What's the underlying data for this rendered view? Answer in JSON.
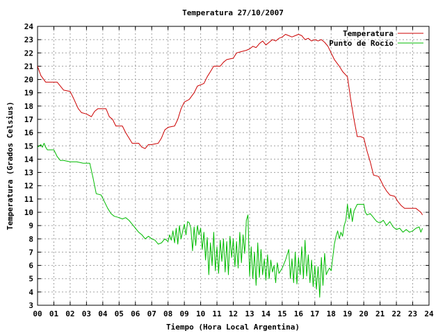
{
  "chart_data": {
    "type": "line",
    "title": "Temperatura 27/10/2007",
    "xlabel": "Tiempo (Hora Local Argentina)",
    "ylabel": "Temperatura (Grados Celsius)",
    "xlim": [
      0,
      24
    ],
    "ylim": [
      3,
      24
    ],
    "x_ticks": [
      "00",
      "01",
      "02",
      "03",
      "04",
      "05",
      "06",
      "07",
      "08",
      "09",
      "10",
      "11",
      "12",
      "13",
      "14",
      "15",
      "16",
      "17",
      "18",
      "19",
      "20",
      "21",
      "22",
      "23",
      "24"
    ],
    "y_ticks": [
      3,
      4,
      5,
      6,
      7,
      8,
      9,
      10,
      11,
      12,
      13,
      14,
      15,
      16,
      17,
      18,
      19,
      20,
      21,
      22,
      23,
      24
    ],
    "grid": true,
    "legend_position": "top-right",
    "series": [
      {
        "name": "Temperatura",
        "color": "#cc0000",
        "points": [
          [
            0.0,
            21.0
          ],
          [
            0.2,
            20.3
          ],
          [
            0.5,
            19.8
          ],
          [
            0.8,
            19.8
          ],
          [
            1.2,
            19.8
          ],
          [
            1.4,
            19.5
          ],
          [
            1.6,
            19.2
          ],
          [
            2.0,
            19.1
          ],
          [
            2.2,
            18.6
          ],
          [
            2.5,
            17.8
          ],
          [
            2.7,
            17.5
          ],
          [
            3.0,
            17.4
          ],
          [
            3.3,
            17.2
          ],
          [
            3.5,
            17.6
          ],
          [
            3.7,
            17.8
          ],
          [
            4.2,
            17.8
          ],
          [
            4.4,
            17.2
          ],
          [
            4.6,
            17.0
          ],
          [
            4.8,
            16.5
          ],
          [
            5.2,
            16.5
          ],
          [
            5.4,
            16.0
          ],
          [
            5.6,
            15.6
          ],
          [
            5.8,
            15.2
          ],
          [
            6.2,
            15.2
          ],
          [
            6.4,
            14.9
          ],
          [
            6.6,
            14.8
          ],
          [
            6.8,
            15.1
          ],
          [
            7.0,
            15.1
          ],
          [
            7.4,
            15.2
          ],
          [
            7.6,
            15.6
          ],
          [
            7.8,
            16.2
          ],
          [
            8.0,
            16.4
          ],
          [
            8.4,
            16.5
          ],
          [
            8.6,
            17.0
          ],
          [
            8.8,
            17.8
          ],
          [
            9.0,
            18.3
          ],
          [
            9.3,
            18.5
          ],
          [
            9.6,
            19.0
          ],
          [
            9.8,
            19.5
          ],
          [
            10.2,
            19.7
          ],
          [
            10.4,
            20.2
          ],
          [
            10.6,
            20.6
          ],
          [
            10.8,
            21.0
          ],
          [
            11.2,
            21.0
          ],
          [
            11.4,
            21.3
          ],
          [
            11.6,
            21.5
          ],
          [
            12.0,
            21.6
          ],
          [
            12.2,
            22.0
          ],
          [
            12.5,
            22.1
          ],
          [
            12.8,
            22.2
          ],
          [
            13.0,
            22.3
          ],
          [
            13.2,
            22.5
          ],
          [
            13.4,
            22.4
          ],
          [
            13.6,
            22.7
          ],
          [
            13.8,
            22.9
          ],
          [
            14.0,
            22.6
          ],
          [
            14.2,
            22.8
          ],
          [
            14.4,
            23.0
          ],
          [
            14.6,
            22.9
          ],
          [
            14.8,
            23.1
          ],
          [
            15.0,
            23.2
          ],
          [
            15.2,
            23.4
          ],
          [
            15.4,
            23.3
          ],
          [
            15.6,
            23.2
          ],
          [
            15.8,
            23.3
          ],
          [
            16.0,
            23.4
          ],
          [
            16.2,
            23.3
          ],
          [
            16.4,
            23.0
          ],
          [
            16.6,
            23.1
          ],
          [
            16.8,
            22.9
          ],
          [
            17.0,
            23.0
          ],
          [
            17.2,
            22.9
          ],
          [
            17.4,
            23.0
          ],
          [
            17.6,
            22.8
          ],
          [
            17.8,
            22.5
          ],
          [
            18.0,
            22.0
          ],
          [
            18.2,
            21.5
          ],
          [
            18.5,
            21.0
          ],
          [
            18.7,
            20.6
          ],
          [
            19.0,
            20.2
          ],
          [
            19.2,
            18.5
          ],
          [
            19.4,
            17.0
          ],
          [
            19.6,
            15.7
          ],
          [
            19.8,
            15.7
          ],
          [
            20.0,
            15.6
          ],
          [
            20.2,
            14.6
          ],
          [
            20.4,
            13.8
          ],
          [
            20.6,
            12.8
          ],
          [
            20.9,
            12.7
          ],
          [
            21.0,
            12.5
          ],
          [
            21.2,
            12.0
          ],
          [
            21.4,
            11.6
          ],
          [
            21.6,
            11.3
          ],
          [
            21.9,
            11.2
          ],
          [
            22.1,
            10.8
          ],
          [
            22.3,
            10.5
          ],
          [
            22.5,
            10.3
          ],
          [
            22.8,
            10.3
          ],
          [
            23.2,
            10.3
          ],
          [
            23.4,
            10.1
          ],
          [
            23.5,
            10.0
          ],
          [
            23.6,
            9.8
          ]
        ]
      },
      {
        "name": "Punto de Rocío",
        "color": "#00bb00",
        "points": [
          [
            0.0,
            14.9
          ],
          [
            0.2,
            15.1
          ],
          [
            0.3,
            14.9
          ],
          [
            0.4,
            15.2
          ],
          [
            0.5,
            14.9
          ],
          [
            0.6,
            14.7
          ],
          [
            1.0,
            14.7
          ],
          [
            1.2,
            14.2
          ],
          [
            1.4,
            13.9
          ],
          [
            1.6,
            13.9
          ],
          [
            2.0,
            13.8
          ],
          [
            2.4,
            13.8
          ],
          [
            2.8,
            13.7
          ],
          [
            3.2,
            13.7
          ],
          [
            3.4,
            12.6
          ],
          [
            3.6,
            11.4
          ],
          [
            3.9,
            11.3
          ],
          [
            4.1,
            10.8
          ],
          [
            4.3,
            10.3
          ],
          [
            4.5,
            9.9
          ],
          [
            4.7,
            9.7
          ],
          [
            5.0,
            9.6
          ],
          [
            5.2,
            9.5
          ],
          [
            5.4,
            9.6
          ],
          [
            5.6,
            9.4
          ],
          [
            5.8,
            9.1
          ],
          [
            6.0,
            8.8
          ],
          [
            6.2,
            8.5
          ],
          [
            6.4,
            8.3
          ],
          [
            6.6,
            8.0
          ],
          [
            6.8,
            8.2
          ],
          [
            7.0,
            8.0
          ],
          [
            7.2,
            7.9
          ],
          [
            7.4,
            7.6
          ],
          [
            7.6,
            7.7
          ],
          [
            7.8,
            8.0
          ],
          [
            8.0,
            7.8
          ],
          [
            8.1,
            8.3
          ],
          [
            8.2,
            7.9
          ],
          [
            8.3,
            8.6
          ],
          [
            8.4,
            7.7
          ],
          [
            8.5,
            8.8
          ],
          [
            8.6,
            7.6
          ],
          [
            8.7,
            9.0
          ],
          [
            8.8,
            8.0
          ],
          [
            8.9,
            8.6
          ],
          [
            9.0,
            9.1
          ],
          [
            9.1,
            8.3
          ],
          [
            9.2,
            9.3
          ],
          [
            9.3,
            9.2
          ],
          [
            9.4,
            8.8
          ],
          [
            9.5,
            7.1
          ],
          [
            9.6,
            8.9
          ],
          [
            9.7,
            7.5
          ],
          [
            9.8,
            9.0
          ],
          [
            9.9,
            8.3
          ],
          [
            10.0,
            8.8
          ],
          [
            10.1,
            7.2
          ],
          [
            10.2,
            8.5
          ],
          [
            10.3,
            6.4
          ],
          [
            10.4,
            8.1
          ],
          [
            10.5,
            5.3
          ],
          [
            10.6,
            7.7
          ],
          [
            10.7,
            6.0
          ],
          [
            10.8,
            8.5
          ],
          [
            10.9,
            5.6
          ],
          [
            11.0,
            7.4
          ],
          [
            11.1,
            5.4
          ],
          [
            11.2,
            7.9
          ],
          [
            11.3,
            6.3
          ],
          [
            11.4,
            8.0
          ],
          [
            11.5,
            5.5
          ],
          [
            11.6,
            7.8
          ],
          [
            11.7,
            5.3
          ],
          [
            11.8,
            8.2
          ],
          [
            11.9,
            6.6
          ],
          [
            12.0,
            8.0
          ],
          [
            12.1,
            5.9
          ],
          [
            12.2,
            7.8
          ],
          [
            12.3,
            5.8
          ],
          [
            12.4,
            8.5
          ],
          [
            12.5,
            6.2
          ],
          [
            12.6,
            8.3
          ],
          [
            12.7,
            6.9
          ],
          [
            12.8,
            9.4
          ],
          [
            12.9,
            9.8
          ],
          [
            13.0,
            5.2
          ],
          [
            13.1,
            7.4
          ],
          [
            13.2,
            5.0
          ],
          [
            13.3,
            7.0
          ],
          [
            13.4,
            4.5
          ],
          [
            13.5,
            7.7
          ],
          [
            13.6,
            5.1
          ],
          [
            13.7,
            7.2
          ],
          [
            13.8,
            5.3
          ],
          [
            13.9,
            6.5
          ],
          [
            14.0,
            4.9
          ],
          [
            14.1,
            6.8
          ],
          [
            14.2,
            5.0
          ],
          [
            14.3,
            6.4
          ],
          [
            14.4,
            5.5
          ],
          [
            14.5,
            6.0
          ],
          [
            14.6,
            4.7
          ],
          [
            14.7,
            6.2
          ],
          [
            14.8,
            5.4
          ],
          [
            15.0,
            5.8
          ],
          [
            15.2,
            6.4
          ],
          [
            15.4,
            7.2
          ],
          [
            15.5,
            5.0
          ],
          [
            15.6,
            6.5
          ],
          [
            15.7,
            4.7
          ],
          [
            15.8,
            7.0
          ],
          [
            15.9,
            4.6
          ],
          [
            16.0,
            6.6
          ],
          [
            16.1,
            5.3
          ],
          [
            16.2,
            7.4
          ],
          [
            16.3,
            5.0
          ],
          [
            16.4,
            7.9
          ],
          [
            16.5,
            5.2
          ],
          [
            16.6,
            6.8
          ],
          [
            16.7,
            4.7
          ],
          [
            16.8,
            6.4
          ],
          [
            16.9,
            4.4
          ],
          [
            17.0,
            6.0
          ],
          [
            17.1,
            4.2
          ],
          [
            17.2,
            5.9
          ],
          [
            17.3,
            3.6
          ],
          [
            17.4,
            6.6
          ],
          [
            17.5,
            4.5
          ],
          [
            17.6,
            6.9
          ],
          [
            17.7,
            5.3
          ],
          [
            17.8,
            5.6
          ],
          [
            17.9,
            5.8
          ],
          [
            18.0,
            5.6
          ],
          [
            18.1,
            6.6
          ],
          [
            18.2,
            7.6
          ],
          [
            18.3,
            8.2
          ],
          [
            18.4,
            8.6
          ],
          [
            18.5,
            8.0
          ],
          [
            18.6,
            8.5
          ],
          [
            18.7,
            8.2
          ],
          [
            18.8,
            9.0
          ],
          [
            18.9,
            9.4
          ],
          [
            19.0,
            10.6
          ],
          [
            19.1,
            9.5
          ],
          [
            19.2,
            10.3
          ],
          [
            19.3,
            9.3
          ],
          [
            19.4,
            10.1
          ],
          [
            19.6,
            10.6
          ],
          [
            19.8,
            10.6
          ],
          [
            20.0,
            10.6
          ],
          [
            20.1,
            10.0
          ],
          [
            20.2,
            9.8
          ],
          [
            20.4,
            9.9
          ],
          [
            20.6,
            9.6
          ],
          [
            20.8,
            9.3
          ],
          [
            21.0,
            9.2
          ],
          [
            21.2,
            9.4
          ],
          [
            21.4,
            9.0
          ],
          [
            21.6,
            9.3
          ],
          [
            21.8,
            8.9
          ],
          [
            22.0,
            8.7
          ],
          [
            22.2,
            8.8
          ],
          [
            22.4,
            8.5
          ],
          [
            22.6,
            8.7
          ],
          [
            22.8,
            8.5
          ],
          [
            23.0,
            8.6
          ],
          [
            23.2,
            8.8
          ],
          [
            23.4,
            8.9
          ],
          [
            23.5,
            8.5
          ],
          [
            23.6,
            8.8
          ]
        ]
      }
    ]
  }
}
